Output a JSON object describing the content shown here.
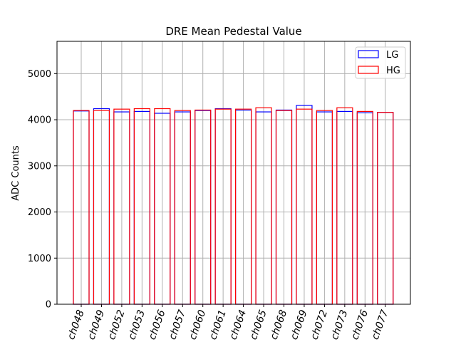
{
  "chart_data": {
    "type": "bar",
    "title": "DRE Mean Pedestal Value",
    "xlabel": "",
    "ylabel": "ADC Counts",
    "ylim": [
      0,
      5700
    ],
    "yticks": [
      0,
      1000,
      2000,
      3000,
      4000,
      5000
    ],
    "ytick_labels": [
      "0",
      "1000",
      "2000",
      "3000",
      "4000",
      "5000"
    ],
    "grid": true,
    "legend_position": "top-right",
    "categories": [
      "ch048",
      "ch049",
      "ch052",
      "ch053",
      "ch056",
      "ch057",
      "ch060",
      "ch061",
      "ch064",
      "ch065",
      "ch068",
      "ch069",
      "ch072",
      "ch073",
      "ch076",
      "ch077"
    ],
    "series": [
      {
        "name": "LG",
        "color": "#0000ff",
        "values": [
          4190,
          4240,
          4170,
          4180,
          4140,
          4170,
          4200,
          4240,
          4210,
          4170,
          4210,
          4310,
          4170,
          4180,
          4150,
          4160
        ]
      },
      {
        "name": "HG",
        "color": "#ff0000",
        "values": [
          4200,
          4200,
          4230,
          4240,
          4240,
          4200,
          4210,
          4230,
          4230,
          4260,
          4200,
          4230,
          4200,
          4260,
          4180,
          4160
        ]
      }
    ]
  }
}
